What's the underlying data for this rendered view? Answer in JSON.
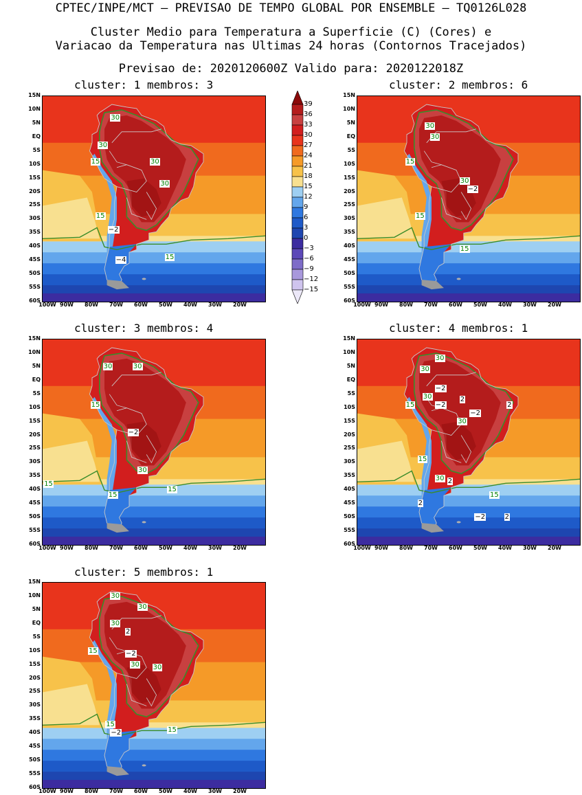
{
  "header": {
    "line1": "CPTEC/INPE/MCT – PREVISAO DE TEMPO GLOBAL POR ENSEMBLE – TQ0126L028",
    "line2": "Cluster Medio para Temperatura a Superficie (C) (Cores) e",
    "line3": "Variacao da Temperatura nas Ultimas 24 horas (Contornos Tracejados)",
    "line4": "Previsao de: 2020120600Z   Valido para: 2020122018Z"
  },
  "axes": {
    "lat_labels": [
      "15N",
      "10N",
      "5N",
      "EQ",
      "5S",
      "10S",
      "15S",
      "20S",
      "25S",
      "30S",
      "35S",
      "40S",
      "45S",
      "50S",
      "55S",
      "60S"
    ],
    "lon_labels": [
      "100W",
      "90W",
      "80W",
      "70W",
      "60W",
      "50W",
      "40W",
      "30W",
      "20W"
    ]
  },
  "colorbar": {
    "levels": [
      "39",
      "36",
      "33",
      "30",
      "27",
      "24",
      "21",
      "18",
      "15",
      "12",
      "9",
      "6",
      "3",
      "0",
      "−3",
      "−6",
      "−9",
      "−12",
      "−15"
    ],
    "colors": [
      "#8b0a0a",
      "#b41c1c",
      "#c84040",
      "#d21e1e",
      "#e8341c",
      "#f06a1e",
      "#f59a28",
      "#f7c24a",
      "#f8e090",
      "#9ecff2",
      "#63a6ec",
      "#2f78e0",
      "#1e5ac8",
      "#1e46b0",
      "#3c2ca0",
      "#5c48b8",
      "#7e6cc8",
      "#a898dc",
      "#cfc4ee",
      "#ece8f8"
    ]
  },
  "chart_data": {
    "type": "map",
    "variable": "Temperatura a Superficie (C)",
    "contours": "Variacao da Temperatura nas Ultimas 24 horas",
    "panels": [
      {
        "cluster": "1",
        "membros": "3",
        "title": "cluster: 1  membros: 3",
        "labels": [
          {
            "text": "30",
            "lon": -71,
            "lat": 7,
            "kind": "pos"
          },
          {
            "text": "30",
            "lon": -76,
            "lat": -3,
            "kind": "pos"
          },
          {
            "text": "15",
            "lon": -79,
            "lat": -9,
            "kind": "pos"
          },
          {
            "text": "30",
            "lon": -55,
            "lat": -9,
            "kind": "pos"
          },
          {
            "text": "30",
            "lon": -51,
            "lat": -17,
            "kind": "pos"
          },
          {
            "text": "15",
            "lon": -77,
            "lat": -29,
            "kind": "pos"
          },
          {
            "text": "−2",
            "lon": -72,
            "lat": -34,
            "kind": "neg"
          },
          {
            "text": "−4",
            "lon": -69,
            "lat": -45,
            "kind": "neg"
          },
          {
            "text": "15",
            "lon": -49,
            "lat": -44,
            "kind": "pos"
          }
        ]
      },
      {
        "cluster": "2",
        "membros": "6",
        "title": "cluster: 2  membros: 6",
        "labels": [
          {
            "text": "30",
            "lon": -71,
            "lat": 4,
            "kind": "pos"
          },
          {
            "text": "30",
            "lon": -69,
            "lat": 0,
            "kind": "pos"
          },
          {
            "text": "15",
            "lon": -79,
            "lat": -9,
            "kind": "pos"
          },
          {
            "text": "30",
            "lon": -57,
            "lat": -16,
            "kind": "pos"
          },
          {
            "text": "−2",
            "lon": -54,
            "lat": -19,
            "kind": "neg"
          },
          {
            "text": "15",
            "lon": -75,
            "lat": -29,
            "kind": "pos"
          },
          {
            "text": "15",
            "lon": -57,
            "lat": -41,
            "kind": "pos"
          }
        ]
      },
      {
        "cluster": "3",
        "membros": "4",
        "title": "cluster: 3  membros: 4",
        "labels": [
          {
            "text": "30",
            "lon": -74,
            "lat": 5,
            "kind": "pos"
          },
          {
            "text": "30",
            "lon": -62,
            "lat": 5,
            "kind": "pos"
          },
          {
            "text": "15",
            "lon": -79,
            "lat": -9,
            "kind": "pos"
          },
          {
            "text": "−2",
            "lon": -64,
            "lat": -19,
            "kind": "neg"
          },
          {
            "text": "30",
            "lon": -60,
            "lat": -33,
            "kind": "pos"
          },
          {
            "text": "15",
            "lon": -98,
            "lat": -38,
            "kind": "pos"
          },
          {
            "text": "15",
            "lon": -72,
            "lat": -42,
            "kind": "pos"
          },
          {
            "text": "15",
            "lon": -48,
            "lat": -40,
            "kind": "pos"
          }
        ]
      },
      {
        "cluster": "4",
        "membros": "1",
        "title": "cluster: 4  membros: 1",
        "labels": [
          {
            "text": "30",
            "lon": -67,
            "lat": 8,
            "kind": "pos"
          },
          {
            "text": "30",
            "lon": -73,
            "lat": 4,
            "kind": "pos"
          },
          {
            "text": "−2",
            "lon": -67,
            "lat": -3,
            "kind": "neg"
          },
          {
            "text": "30",
            "lon": -72,
            "lat": -6,
            "kind": "pos"
          },
          {
            "text": "−2",
            "lon": -67,
            "lat": -9,
            "kind": "neg"
          },
          {
            "text": "2",
            "lon": -57,
            "lat": -7,
            "kind": "neg"
          },
          {
            "text": "2",
            "lon": -38,
            "lat": -9,
            "kind": "neg"
          },
          {
            "text": "15",
            "lon": -79,
            "lat": -9,
            "kind": "pos"
          },
          {
            "text": "−2",
            "lon": -53,
            "lat": -12,
            "kind": "neg"
          },
          {
            "text": "30",
            "lon": -58,
            "lat": -15,
            "kind": "pos"
          },
          {
            "text": "15",
            "lon": -74,
            "lat": -29,
            "kind": "pos"
          },
          {
            "text": "30",
            "lon": -67,
            "lat": -36,
            "kind": "pos"
          },
          {
            "text": "2",
            "lon": -62,
            "lat": -37,
            "kind": "neg"
          },
          {
            "text": "15",
            "lon": -45,
            "lat": -42,
            "kind": "pos"
          },
          {
            "text": "2",
            "lon": -74,
            "lat": -45,
            "kind": "neg"
          },
          {
            "text": "−2",
            "lon": -51,
            "lat": -50,
            "kind": "neg"
          },
          {
            "text": "2",
            "lon": -39,
            "lat": -50,
            "kind": "neg"
          }
        ]
      },
      {
        "cluster": "5",
        "membros": "1",
        "title": "cluster: 5  membros: 1",
        "labels": [
          {
            "text": "30",
            "lon": -71,
            "lat": 10,
            "kind": "pos"
          },
          {
            "text": "30",
            "lon": -60,
            "lat": 6,
            "kind": "pos"
          },
          {
            "text": "30",
            "lon": -71,
            "lat": 0,
            "kind": "pos"
          },
          {
            "text": "2",
            "lon": -65,
            "lat": -3,
            "kind": "neg"
          },
          {
            "text": "15",
            "lon": -80,
            "lat": -10,
            "kind": "pos"
          },
          {
            "text": "−2",
            "lon": -65,
            "lat": -11,
            "kind": "neg"
          },
          {
            "text": "30",
            "lon": -63,
            "lat": -15,
            "kind": "pos"
          },
          {
            "text": "30",
            "lon": -54,
            "lat": -16,
            "kind": "pos"
          },
          {
            "text": "15",
            "lon": -73,
            "lat": -37,
            "kind": "pos"
          },
          {
            "text": "−2",
            "lon": -71,
            "lat": -40,
            "kind": "neg"
          },
          {
            "text": "15",
            "lon": -48,
            "lat": -39,
            "kind": "pos"
          }
        ]
      }
    ]
  }
}
